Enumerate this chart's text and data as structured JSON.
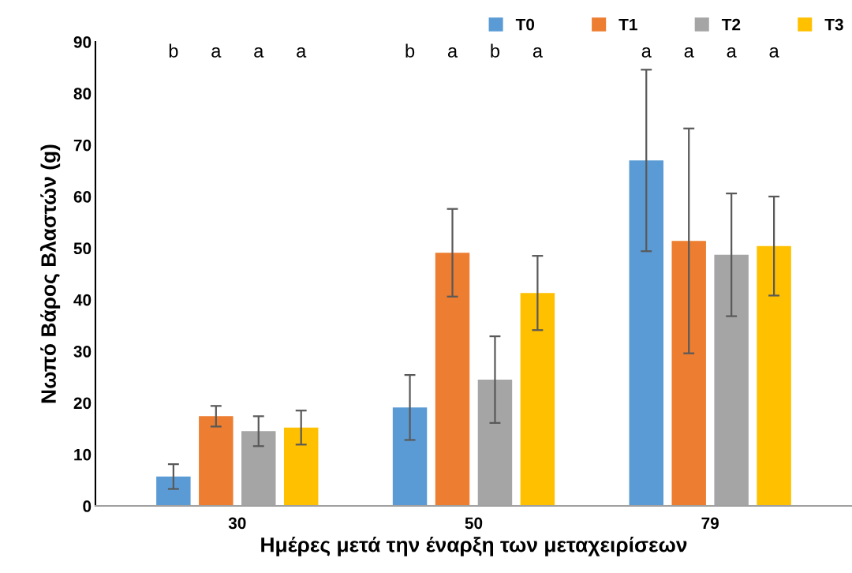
{
  "chart_data": {
    "type": "bar",
    "xlabel": "Ημέρες μετά την έναρξη των μεταχειρίσεων",
    "ylabel": "Νωπό Βάρος Βλαστών (g)",
    "categories": [
      "30",
      "50",
      "79"
    ],
    "series": [
      {
        "name": "T0",
        "color": "#5b9bd5",
        "values": [
          5.7,
          19.1,
          67.0
        ],
        "errors": [
          2.4,
          6.3,
          17.6
        ]
      },
      {
        "name": "T1",
        "color": "#ed7d31",
        "values": [
          17.4,
          49.1,
          51.4
        ],
        "errors": [
          2.0,
          8.5,
          21.8
        ]
      },
      {
        "name": "T2",
        "color": "#a5a5a5",
        "values": [
          14.5,
          24.5,
          48.7
        ],
        "errors": [
          2.9,
          8.4,
          11.9
        ]
      },
      {
        "name": "T3",
        "color": "#ffc000",
        "values": [
          15.2,
          41.3,
          50.4
        ],
        "errors": [
          3.3,
          7.2,
          9.6
        ]
      }
    ],
    "annotations": [
      "b",
      "a",
      "a",
      "a",
      "b",
      "a",
      "b",
      "a",
      "a",
      "a",
      "a",
      "a"
    ],
    "ylim": [
      0,
      90
    ],
    "yticks": [
      0,
      10,
      20,
      30,
      40,
      50,
      60,
      70,
      80,
      90
    ],
    "grid": false,
    "legend": "top"
  }
}
